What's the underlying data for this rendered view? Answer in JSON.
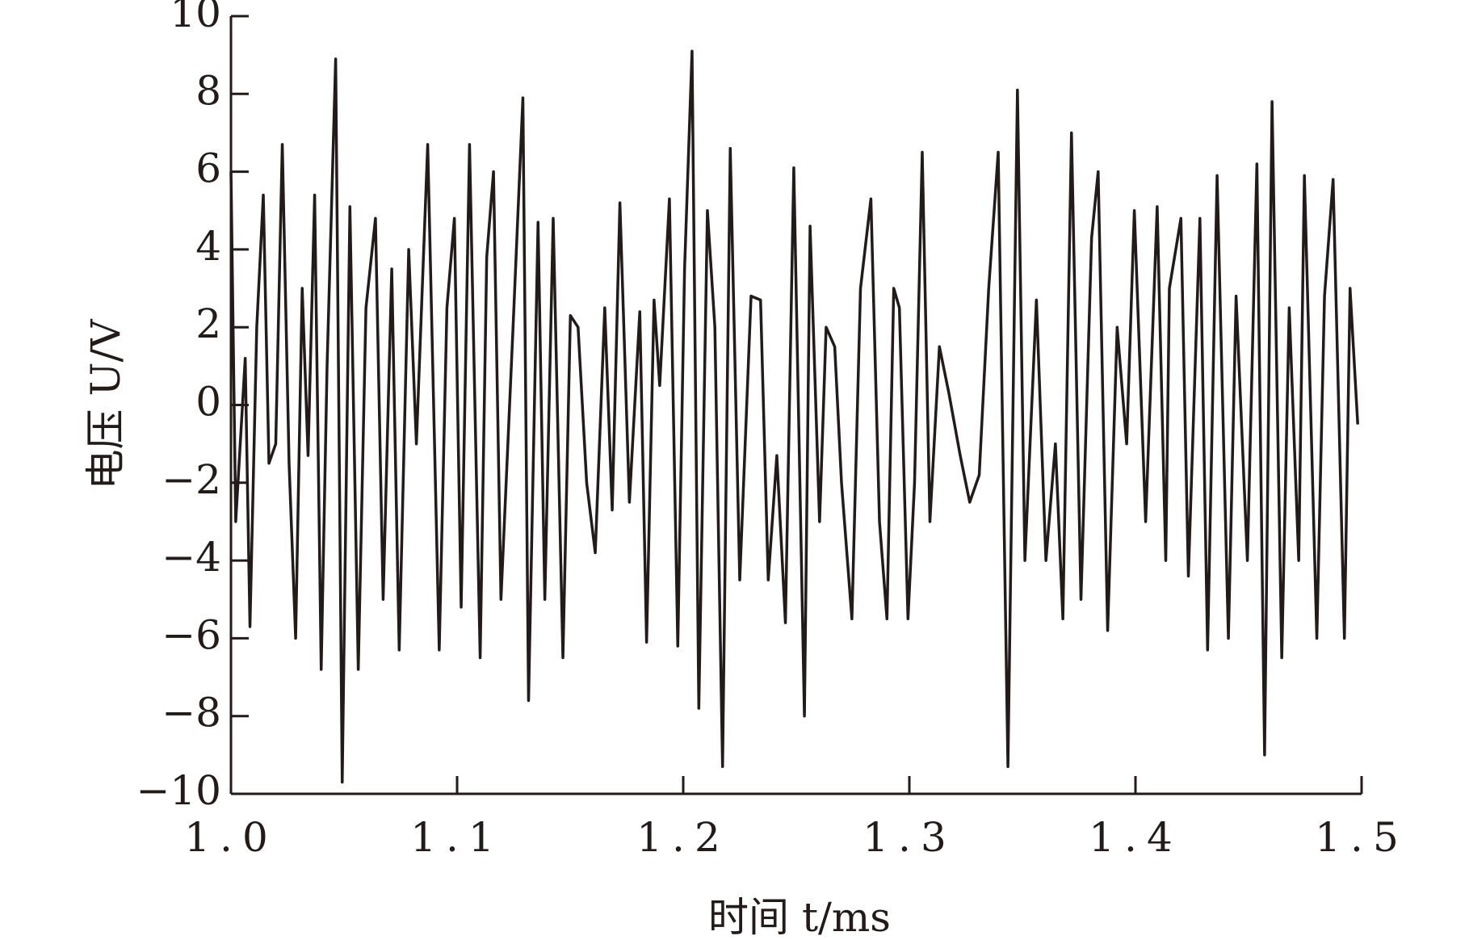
{
  "chart_data": {
    "type": "line",
    "xlabel": "时间 t/ms",
    "ylabel": "电压 U/V",
    "x": [
      1.0,
      1.0021,
      1.0063,
      1.0084,
      1.0114,
      1.0143,
      1.0168,
      1.0198,
      1.0227,
      1.0257,
      1.0286,
      1.0315,
      1.0341,
      1.037,
      1.0399,
      1.0425,
      1.0463,
      1.0492,
      1.0526,
      1.0563,
      1.0597,
      1.0639,
      1.0673,
      1.0711,
      1.0744,
      1.0786,
      1.082,
      1.087,
      1.0921,
      1.0955,
      1.0988,
      1.1018,
      1.1055,
      1.1102,
      1.1131,
      1.1161,
      1.1194,
      1.1249,
      1.1291,
      1.1316,
      1.1358,
      1.1388,
      1.1425,
      1.1468,
      1.1501,
      1.1535,
      1.1573,
      1.1611,
      1.1653,
      1.1686,
      1.172,
      1.1762,
      1.1808,
      1.1838,
      1.1871,
      1.1896,
      1.1939,
      1.1976,
      1.2006,
      1.2039,
      1.2069,
      1.2107,
      1.214,
      1.2174,
      1.2208,
      1.225,
      1.23,
      1.2342,
      1.2376,
      1.2414,
      1.2452,
      1.2489,
      1.2536,
      1.2561,
      1.2603,
      1.2632,
      1.267,
      1.27,
      1.2746,
      1.2784,
      1.283,
      1.2868,
      1.2901,
      1.2931,
      1.2956,
      1.2994,
      1.3023,
      1.3057,
      1.3091,
      1.3133,
      1.3175,
      1.3225,
      1.3267,
      1.3309,
      1.3351,
      1.3393,
      1.3436,
      1.3478,
      1.3511,
      1.3562,
      1.3604,
      1.3646,
      1.3679,
      1.3717,
      1.3759,
      1.3806,
      1.3835,
      1.3877,
      1.3919,
      1.3961,
      1.3995,
      1.4045,
      1.4096,
      1.4134,
      1.415,
      1.4201,
      1.4234,
      1.4285,
      1.4319,
      1.4361,
      1.4411,
      1.4445,
      1.4495,
      1.4537,
      1.4571,
      1.4604,
      1.4647,
      1.468,
      1.4722,
      1.4747,
      1.4802,
      1.4836,
      1.4874,
      1.4924,
      1.4949,
      1.4983
    ],
    "series": [
      {
        "color": "#231a1a",
        "values": [
          6,
          -3,
          1.2,
          -5.7,
          2,
          5.4,
          -1.5,
          -1,
          6.7,
          -1.5,
          -6,
          3,
          -1.3,
          5.4,
          -6.8,
          1,
          8.9,
          -9.7,
          5.1,
          -6.8,
          2.5,
          4.8,
          -5,
          3.5,
          -6.3,
          4,
          -1,
          6.7,
          -6.3,
          2.5,
          4.8,
          -5.2,
          6.7,
          -6.5,
          3.8,
          6,
          -5,
          2.2,
          7.9,
          -7.6,
          4.7,
          -5,
          4.8,
          -6.5,
          2.3,
          2,
          -2,
          -3.8,
          2.5,
          -2.7,
          5.2,
          -2.5,
          2.4,
          -6.1,
          2.7,
          0.5,
          5.3,
          -6.2,
          3.5,
          9.1,
          -7.8,
          5,
          2,
          -9.3,
          6.6,
          -4.5,
          2.8,
          2.7,
          -4.5,
          -1.3,
          -5.6,
          6.1,
          -8,
          4.6,
          -3,
          2,
          1.5,
          -2,
          -5.5,
          3,
          5.3,
          -3,
          -5.5,
          3,
          2.5,
          -5.5,
          -2,
          6.5,
          -3,
          1.5,
          0.3,
          -1.3,
          -2.5,
          -1.8,
          3,
          6.5,
          -9.3,
          8.1,
          -4,
          2.7,
          -4,
          -1,
          -5.5,
          7,
          -5,
          4.3,
          6,
          -5.8,
          2,
          -1,
          5,
          -3,
          5.1,
          -4,
          3,
          4.8,
          -4.4,
          4.8,
          -6.3,
          5.9,
          -6,
          2.8,
          -4,
          6.2,
          -9,
          7.8,
          -6.5,
          2.5,
          -4,
          5.9,
          -6,
          2.8,
          5.8,
          -6,
          3,
          -0.5
        ]
      }
    ],
    "xlim": [
      1.0,
      1.5
    ],
    "xticks": [
      {
        "value": 1,
        "label": "1.0"
      },
      1.1,
      1.2,
      1.3,
      1.4,
      1.5
    ],
    "ylim": [
      -10,
      10
    ],
    "yticks": [
      {
        "value": -10,
        "label": "−10"
      },
      {
        "value": -8,
        "label": "−8"
      },
      {
        "value": -6,
        "label": "−6"
      },
      {
        "value": -4,
        "label": "−4"
      },
      {
        "value": -2,
        "label": "−2"
      },
      0,
      2,
      4,
      6,
      8,
      10
    ],
    "grid": false
  }
}
